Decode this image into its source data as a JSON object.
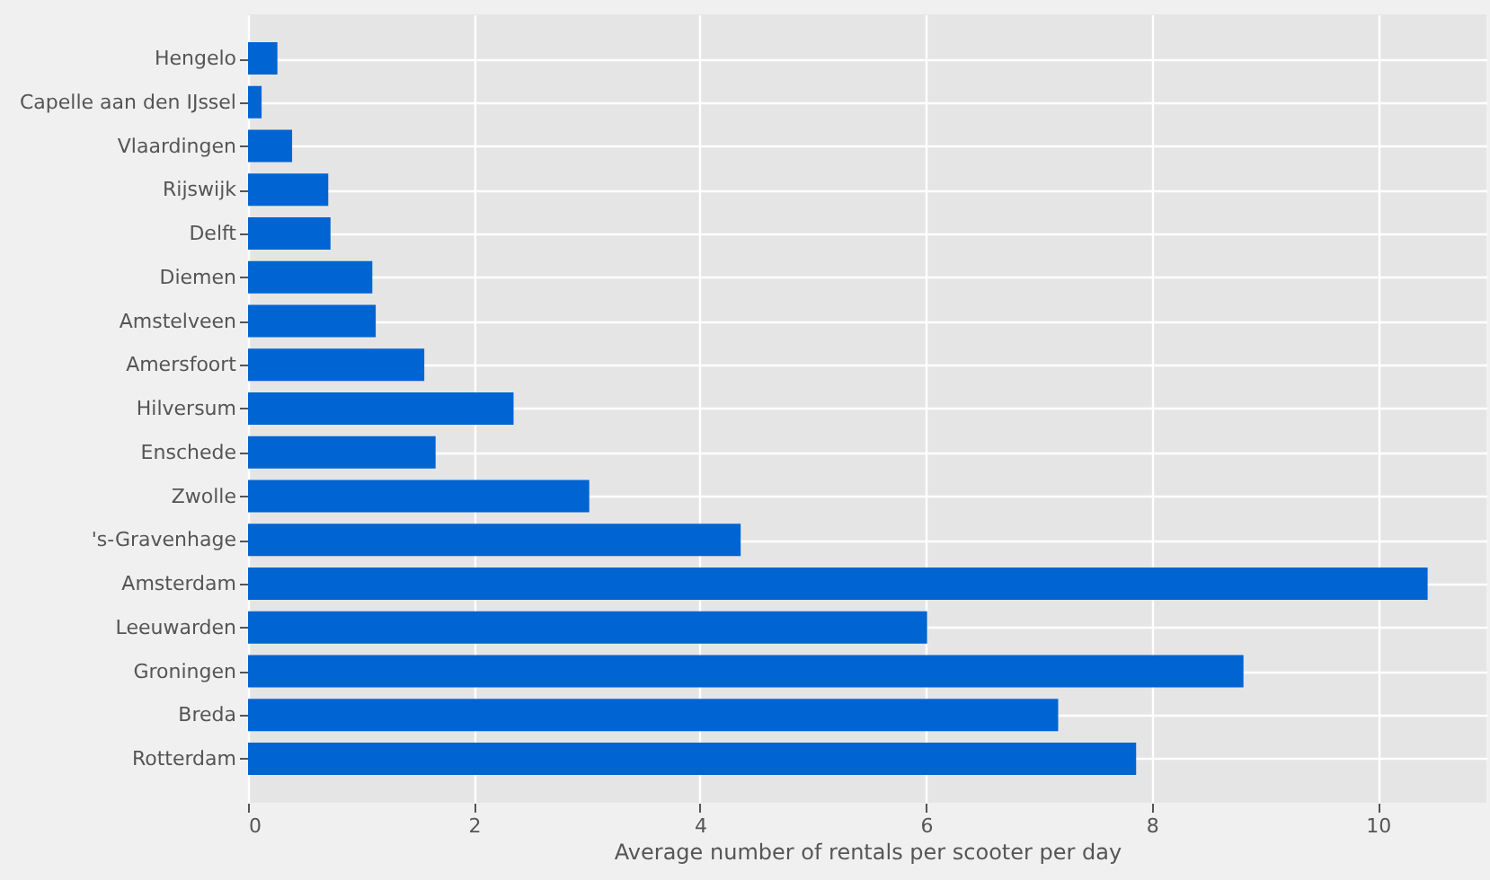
{
  "chart_data": {
    "type": "bar",
    "orientation": "horizontal",
    "xlabel": "Average number of rentals per scooter per day",
    "categories": [
      "Hengelo",
      "Capelle aan den IJssel",
      "Vlaardingen",
      "Rijswijk",
      "Delft",
      "Diemen",
      "Amstelveen",
      "Amersfoort",
      "Hilversum",
      "Enschede",
      "Zwolle",
      "'s-Gravenhage",
      "Amsterdam",
      "Leeuwarden",
      "Groningen",
      "Breda",
      "Rotterdam"
    ],
    "values": [
      0.26,
      0.12,
      0.39,
      0.71,
      0.73,
      1.1,
      1.13,
      1.56,
      2.35,
      1.66,
      3.02,
      4.36,
      10.44,
      6.01,
      8.81,
      7.17,
      7.86
    ],
    "color": "#0064d2",
    "xlim": [
      0,
      10.96
    ],
    "xticks": [
      0,
      2,
      4,
      6,
      8,
      10
    ],
    "grid": true
  }
}
